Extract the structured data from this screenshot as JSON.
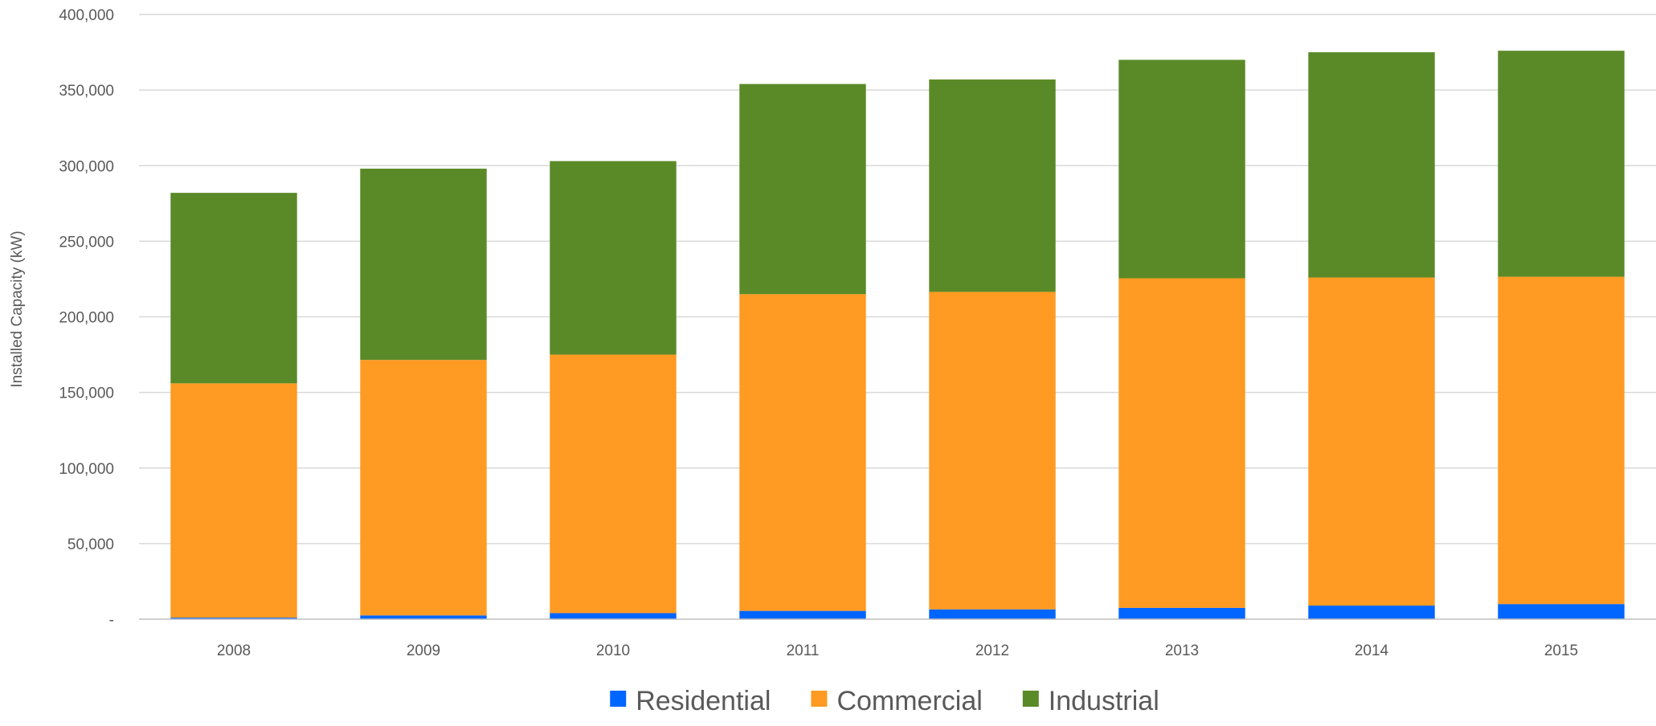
{
  "chart_data": {
    "type": "bar",
    "stacked": true,
    "title": "",
    "xlabel": "",
    "ylabel": "Installed Capacity (kW)",
    "ylim": [
      0,
      400000
    ],
    "yticks": [
      0,
      50000,
      100000,
      150000,
      200000,
      250000,
      300000,
      350000,
      400000
    ],
    "ytick_labels": [
      "-",
      "50,000",
      "100,000",
      "150,000",
      "200,000",
      "250,000",
      "300,000",
      "350,000",
      "400,000"
    ],
    "categories": [
      "2008",
      "2009",
      "2010",
      "2011",
      "2012",
      "2013",
      "2014",
      "2015"
    ],
    "series": [
      {
        "name": "Residential",
        "color": "#0066ff",
        "values": [
          1000,
          2500,
          4000,
          5500,
          6500,
          7500,
          9000,
          10000
        ]
      },
      {
        "name": "Commercial",
        "color": "#ff9a22",
        "values": [
          155000,
          169000,
          171000,
          209500,
          210000,
          218000,
          217000,
          216500
        ]
      },
      {
        "name": "Industrial",
        "color": "#5a8a27",
        "values": [
          126000,
          126500,
          128000,
          139000,
          140500,
          144500,
          149000,
          149500
        ]
      }
    ],
    "grid": true,
    "legend_position": "bottom"
  }
}
